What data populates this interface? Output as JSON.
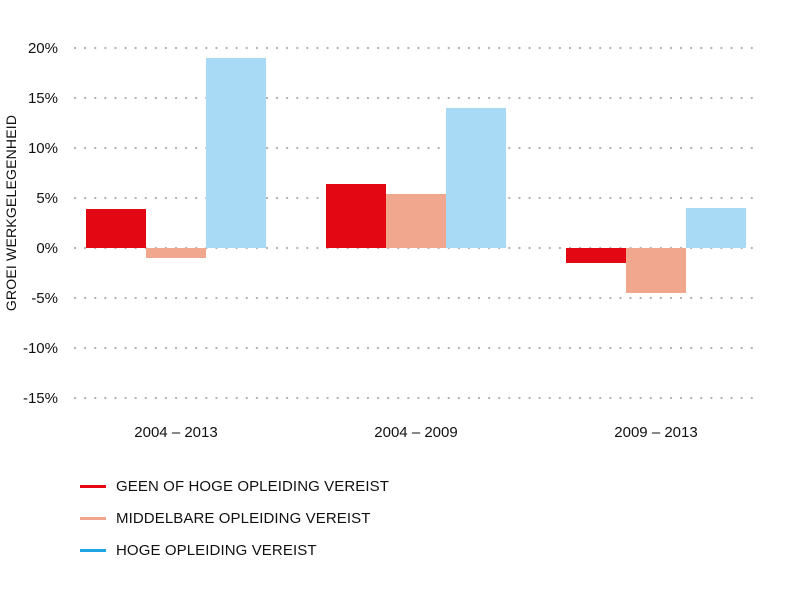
{
  "chart_data": {
    "type": "bar",
    "title": "",
    "xlabel": "",
    "ylabel": "GROEI WERKGELEGENHEID",
    "categories": [
      "2004 – 2013",
      "2004 – 2009",
      "2009 – 2013"
    ],
    "series": [
      {
        "name": "GEEN OF HOGE OPLEIDING VEREIST",
        "color": "#e30613",
        "legend_color": "#e30613",
        "values": [
          3.9,
          6.4,
          -1.5
        ]
      },
      {
        "name": "MIDDELBARE OPLEIDING VEREIST",
        "color": "#f0a78e",
        "legend_color": "#f0a78e",
        "values": [
          -1.0,
          5.4,
          -4.5
        ]
      },
      {
        "name": "HOGE OPLEIDING VEREIST",
        "color": "#a8daf5",
        "legend_color": "#1ea5e3",
        "values": [
          19.0,
          14.0,
          4.0
        ]
      }
    ],
    "ylim": [
      -15,
      20
    ],
    "yticks": [
      20,
      15,
      10,
      5,
      0,
      -5,
      -10,
      -15
    ],
    "ytick_labels": [
      "20%",
      "15%",
      "10%",
      "5%",
      "0%",
      "-5%",
      "-10%",
      "-15%"
    ],
    "grid": true,
    "legend": "bottom-left"
  }
}
